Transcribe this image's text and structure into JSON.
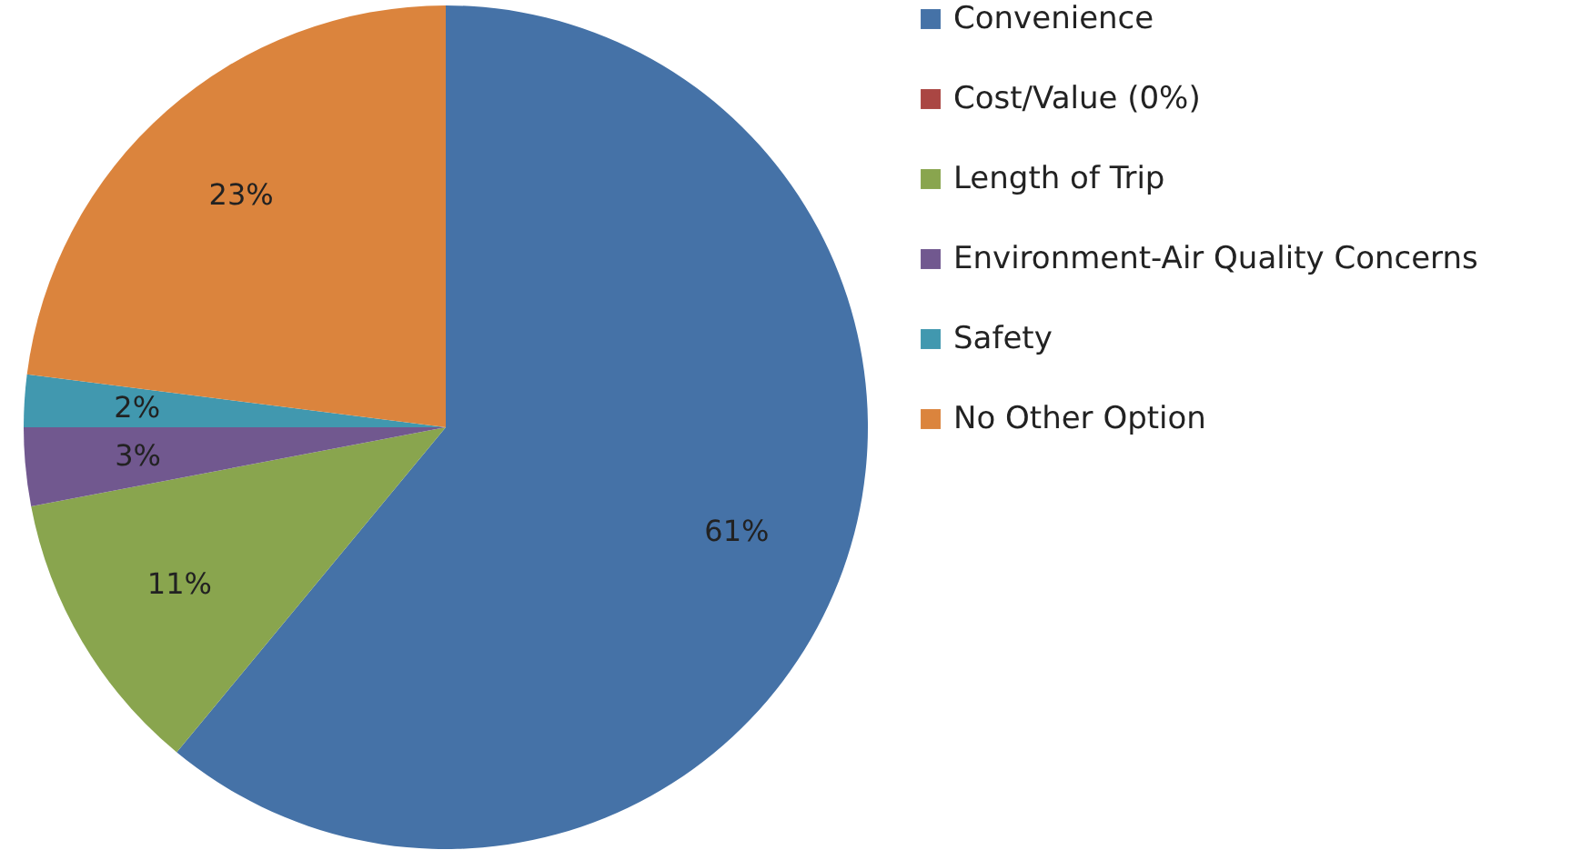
{
  "chart_data": {
    "type": "pie",
    "categories": [
      "Convenience",
      "Cost/Value (0%)",
      "Length of Trip",
      "Environment-Air Quality Concerns",
      "Safety",
      "No Other Option"
    ],
    "values": [
      61,
      0,
      11,
      3,
      2,
      23
    ],
    "colors": [
      "#4572a7",
      "#aa4643",
      "#89a54e",
      "#71588f",
      "#4198af",
      "#db843d"
    ],
    "value_labels": [
      "61%",
      null,
      "11%",
      "3%",
      "2%",
      "23%"
    ],
    "legend": "right"
  }
}
